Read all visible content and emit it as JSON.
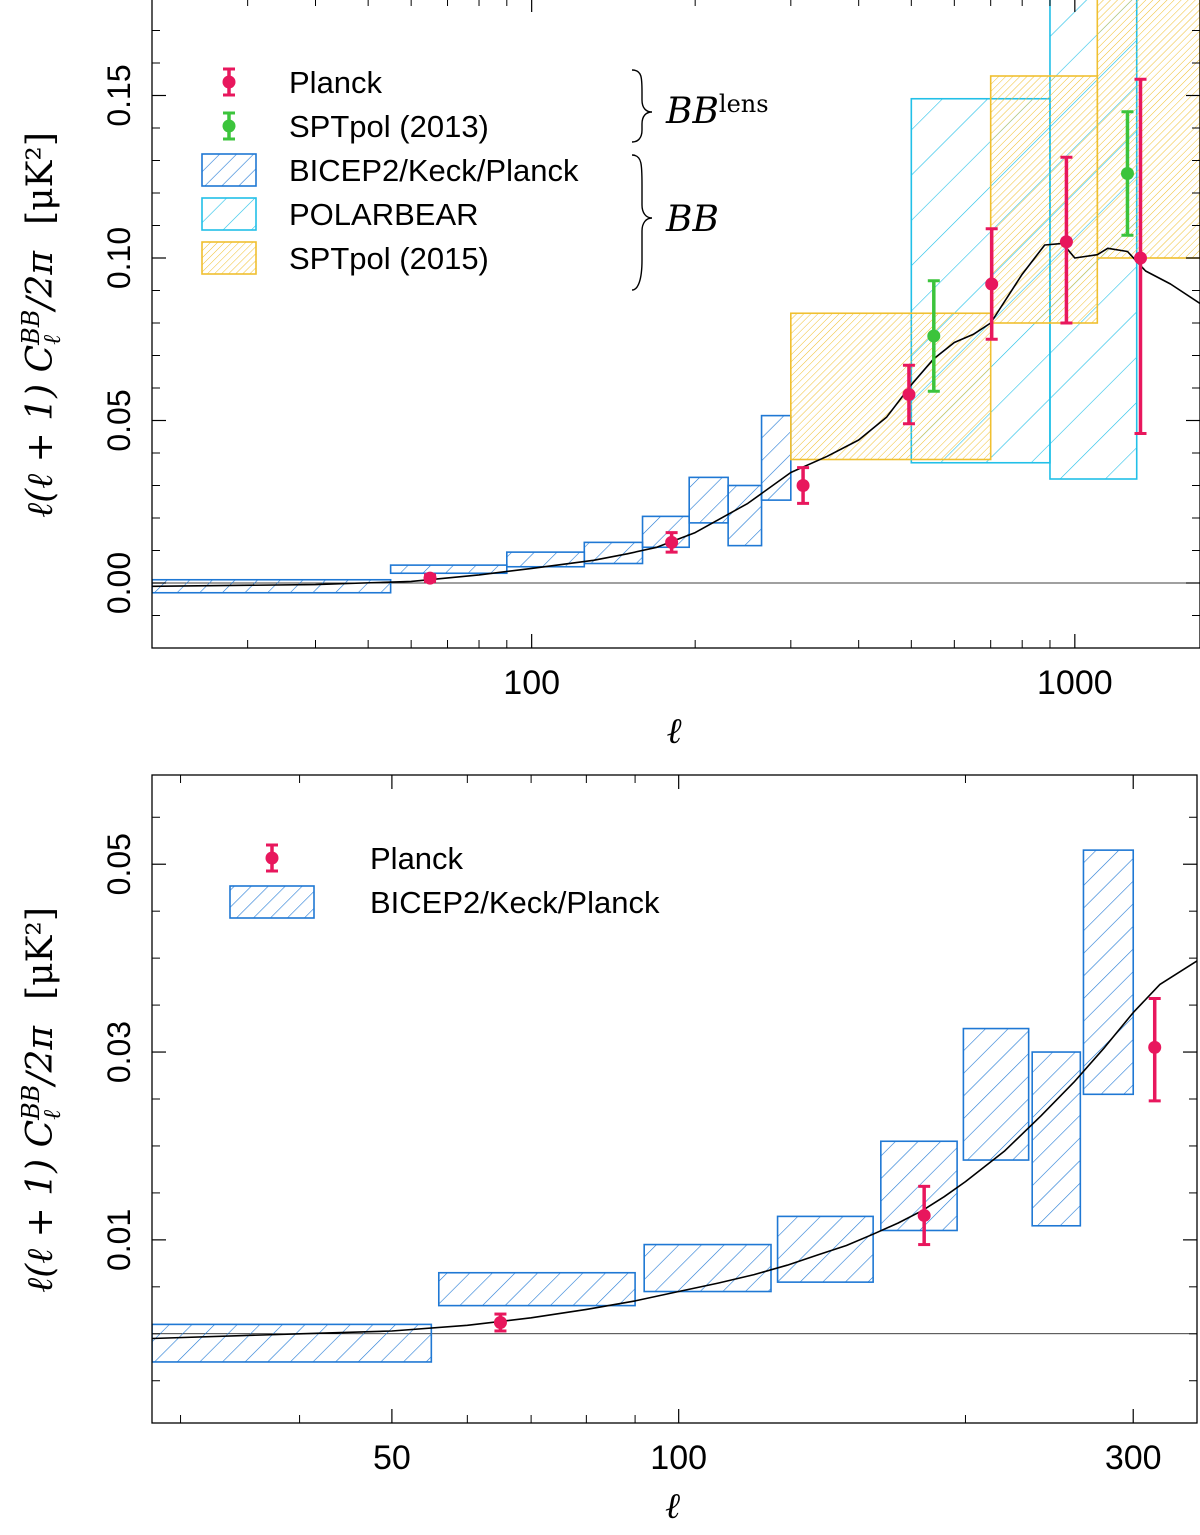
{
  "chart_data": [
    {
      "type": "scatter",
      "xscale": "log",
      "xlim": [
        20,
        1700
      ],
      "ylim": [
        -0.02,
        0.18
      ],
      "xlabel": "ℓ",
      "ylabel_main": "ℓ(ℓ + 1) C",
      "ylabel_sub": "ℓ",
      "ylabel_sup": "BB",
      "ylabel_tail": "/2π",
      "ylabel_units": "[μK²]",
      "x_ticks_major": [
        100,
        1000
      ],
      "x_tick_labels": [
        "100",
        "1000"
      ],
      "x_ticks_minor": [
        30,
        40,
        50,
        60,
        70,
        80,
        90,
        200,
        300,
        400,
        500,
        600,
        700,
        800,
        900
      ],
      "y_ticks": [
        0.0,
        0.05,
        0.1,
        0.15
      ],
      "y_tick_labels": [
        "0.00",
        "0.05",
        "0.10",
        "0.15"
      ],
      "y_ticks_minor": [
        -0.01,
        0.01,
        0.02,
        0.03,
        0.04,
        0.06,
        0.07,
        0.08,
        0.09,
        0.11,
        0.12,
        0.13,
        0.14,
        0.16,
        0.17
      ],
      "legend": {
        "entries": [
          {
            "name": "Planck",
            "style": "point",
            "color": "#e8175d"
          },
          {
            "name": "SPTpol (2013)",
            "style": "point",
            "color": "#3cc43c"
          },
          {
            "name": "BICEP2/Keck/Planck",
            "style": "box",
            "color": "#1f78d4",
            "hatch": "sparse"
          },
          {
            "name": "POLARBEAR",
            "style": "box",
            "color": "#22c0e8",
            "hatch": "sparse"
          },
          {
            "name": "SPTpol (2015)",
            "style": "box",
            "color": "#f0c030",
            "hatch": "dense"
          }
        ],
        "group_labels": [
          {
            "base": "BB",
            "sup": "lens"
          },
          {
            "base": "BB",
            "sup": ""
          }
        ]
      },
      "series": [
        {
          "name": "BICEP2/Keck/Planck",
          "kind": "boxes",
          "color": "#1f78d4",
          "bins": [
            {
              "x": [
                20,
                55
              ],
              "y": [
                -0.003,
                0.001
              ]
            },
            {
              "x": [
                55,
                90
              ],
              "y": [
                0.003,
                0.0055
              ]
            },
            {
              "x": [
                90,
                125
              ],
              "y": [
                0.005,
                0.0095
              ]
            },
            {
              "x": [
                125,
                160
              ],
              "y": [
                0.006,
                0.0125
              ]
            },
            {
              "x": [
                160,
                195
              ],
              "y": [
                0.011,
                0.0205
              ]
            },
            {
              "x": [
                195,
                230
              ],
              "y": [
                0.0185,
                0.0325
              ]
            },
            {
              "x": [
                230,
                265
              ],
              "y": [
                0.0115,
                0.03
              ]
            },
            {
              "x": [
                265,
                300
              ],
              "y": [
                0.0255,
                0.0515
              ]
            }
          ]
        },
        {
          "name": "POLARBEAR",
          "kind": "boxes",
          "color": "#22c0e8",
          "bins": [
            {
              "x": [
                500,
                900
              ],
              "y": [
                0.037,
                0.149
              ]
            },
            {
              "x": [
                900,
                1300
              ],
              "y": [
                0.032,
                0.19
              ]
            }
          ]
        },
        {
          "name": "SPTpol (2015)",
          "kind": "boxes",
          "color": "#f0c030",
          "bins": [
            {
              "x": [
                300,
                700
              ],
              "y": [
                0.038,
                0.083
              ]
            },
            {
              "x": [
                700,
                1100
              ],
              "y": [
                0.08,
                0.156
              ]
            },
            {
              "x": [
                1100,
                1700
              ],
              "y": [
                0.1,
                0.19
              ]
            }
          ]
        },
        {
          "name": "Planck",
          "kind": "points",
          "color": "#e8175d",
          "points": [
            {
              "x": 65,
              "y": 0.0015,
              "lo": 0.0005,
              "hi": 0.0025
            },
            {
              "x": 181,
              "y": 0.0125,
              "lo": 0.0095,
              "hi": 0.0155
            },
            {
              "x": 316,
              "y": 0.03,
              "lo": 0.0245,
              "hi": 0.0355
            },
            {
              "x": 495,
              "y": 0.058,
              "lo": 0.049,
              "hi": 0.067
            },
            {
              "x": 703,
              "y": 0.092,
              "lo": 0.075,
              "hi": 0.109
            },
            {
              "x": 965,
              "y": 0.105,
              "lo": 0.08,
              "hi": 0.131
            },
            {
              "x": 1321,
              "y": 0.1,
              "lo": 0.046,
              "hi": 0.155
            }
          ]
        },
        {
          "name": "SPTpol (2013)",
          "kind": "points",
          "color": "#3cc43c",
          "points": [
            {
              "x": 550,
              "y": 0.076,
              "lo": 0.059,
              "hi": 0.093
            },
            {
              "x": 1250,
              "y": 0.126,
              "lo": 0.107,
              "hi": 0.145
            }
          ]
        },
        {
          "name": "Lensing model",
          "kind": "line",
          "color": "#000000",
          "points": [
            [
              20,
              -0.001
            ],
            [
              40,
              -0.0005
            ],
            [
              60,
              0.0005
            ],
            [
              80,
              0.0025
            ],
            [
              100,
              0.0045
            ],
            [
              130,
              0.007
            ],
            [
              150,
              0.009
            ],
            [
              170,
              0.011
            ],
            [
              200,
              0.0155
            ],
            [
              250,
              0.0245
            ],
            [
              300,
              0.034
            ],
            [
              350,
              0.039
            ],
            [
              400,
              0.044
            ],
            [
              450,
              0.051
            ],
            [
              500,
              0.061
            ],
            [
              550,
              0.069
            ],
            [
              600,
              0.074
            ],
            [
              650,
              0.0765
            ],
            [
              700,
              0.08
            ],
            [
              800,
              0.095
            ],
            [
              880,
              0.104
            ],
            [
              950,
              0.1045
            ],
            [
              1000,
              0.1
            ],
            [
              1100,
              0.101
            ],
            [
              1150,
              0.103
            ],
            [
              1250,
              0.102
            ],
            [
              1350,
              0.096
            ],
            [
              1500,
              0.092
            ],
            [
              1700,
              0.086
            ]
          ]
        }
      ]
    },
    {
      "type": "scatter",
      "xscale": "log",
      "xlim": [
        28,
        350
      ],
      "ylim": [
        -0.0095,
        0.0595
      ],
      "xlabel": "ℓ",
      "ylabel_main": "ℓ(ℓ + 1) C",
      "ylabel_sub": "ℓ",
      "ylabel_sup": "BB",
      "ylabel_tail": "/2π",
      "ylabel_units": "[μK²]",
      "x_ticks_major": [
        50,
        100,
        300
      ],
      "x_tick_labels": [
        "50",
        "100",
        "300"
      ],
      "x_ticks_minor": [
        30,
        40,
        60,
        70,
        80,
        90,
        200
      ],
      "y_ticks": [
        0.01,
        0.03,
        0.05
      ],
      "y_tick_labels": [
        "0.01",
        "0.03",
        "0.05"
      ],
      "y_ticks_minor": [
        -0.005,
        0.0,
        0.005,
        0.015,
        0.02,
        0.025,
        0.035,
        0.04,
        0.045,
        0.055
      ],
      "legend": {
        "entries": [
          {
            "name": "Planck",
            "style": "point",
            "color": "#e8175d"
          },
          {
            "name": "BICEP2/Keck/Planck",
            "style": "box",
            "color": "#1f78d4",
            "hatch": "sparse"
          }
        ],
        "group_labels": []
      },
      "series": [
        {
          "name": "BICEP2/Keck/Planck",
          "kind": "boxes",
          "color": "#1f78d4",
          "bins": [
            {
              "x": [
                28,
                55
              ],
              "y": [
                -0.003,
                0.001
              ]
            },
            {
              "x": [
                56,
                90
              ],
              "y": [
                0.003,
                0.0065
              ]
            },
            {
              "x": [
                92,
                125
              ],
              "y": [
                0.0045,
                0.0095
              ]
            },
            {
              "x": [
                127,
                160
              ],
              "y": [
                0.0055,
                0.0125
              ]
            },
            {
              "x": [
                163,
                196
              ],
              "y": [
                0.011,
                0.0205
              ]
            },
            {
              "x": [
                199,
                233
              ],
              "y": [
                0.0185,
                0.0325
              ]
            },
            {
              "x": [
                235,
                264
              ],
              "y": [
                0.0115,
                0.03
              ]
            },
            {
              "x": [
                266,
                300
              ],
              "y": [
                0.0255,
                0.0515
              ]
            }
          ]
        },
        {
          "name": "Planck",
          "kind": "points",
          "color": "#e8175d",
          "points": [
            {
              "x": 65,
              "y": 0.0012,
              "lo": 0.0003,
              "hi": 0.0021
            },
            {
              "x": 181,
              "y": 0.0126,
              "lo": 0.0095,
              "hi": 0.0157
            },
            {
              "x": 316,
              "y": 0.0305,
              "lo": 0.0248,
              "hi": 0.0357
            }
          ]
        },
        {
          "name": "Lensing model",
          "kind": "line",
          "color": "#000000",
          "points": [
            [
              28,
              -0.0005
            ],
            [
              40,
              0.0
            ],
            [
              50,
              0.0003
            ],
            [
              60,
              0.0009
            ],
            [
              70,
              0.0017
            ],
            [
              80,
              0.0026
            ],
            [
              90,
              0.0035
            ],
            [
              100,
              0.0045
            ],
            [
              110,
              0.0054
            ],
            [
              120,
              0.0063
            ],
            [
              130,
              0.0073
            ],
            [
              140,
              0.0084
            ],
            [
              150,
              0.0094
            ],
            [
              160,
              0.0106
            ],
            [
              170,
              0.0118
            ],
            [
              180,
              0.0131
            ],
            [
              190,
              0.0146
            ],
            [
              200,
              0.0162
            ],
            [
              220,
              0.0195
            ],
            [
              240,
              0.0232
            ],
            [
              260,
              0.0268
            ],
            [
              280,
              0.0305
            ],
            [
              300,
              0.0342
            ],
            [
              320,
              0.0372
            ],
            [
              350,
              0.0397
            ]
          ]
        }
      ]
    }
  ]
}
